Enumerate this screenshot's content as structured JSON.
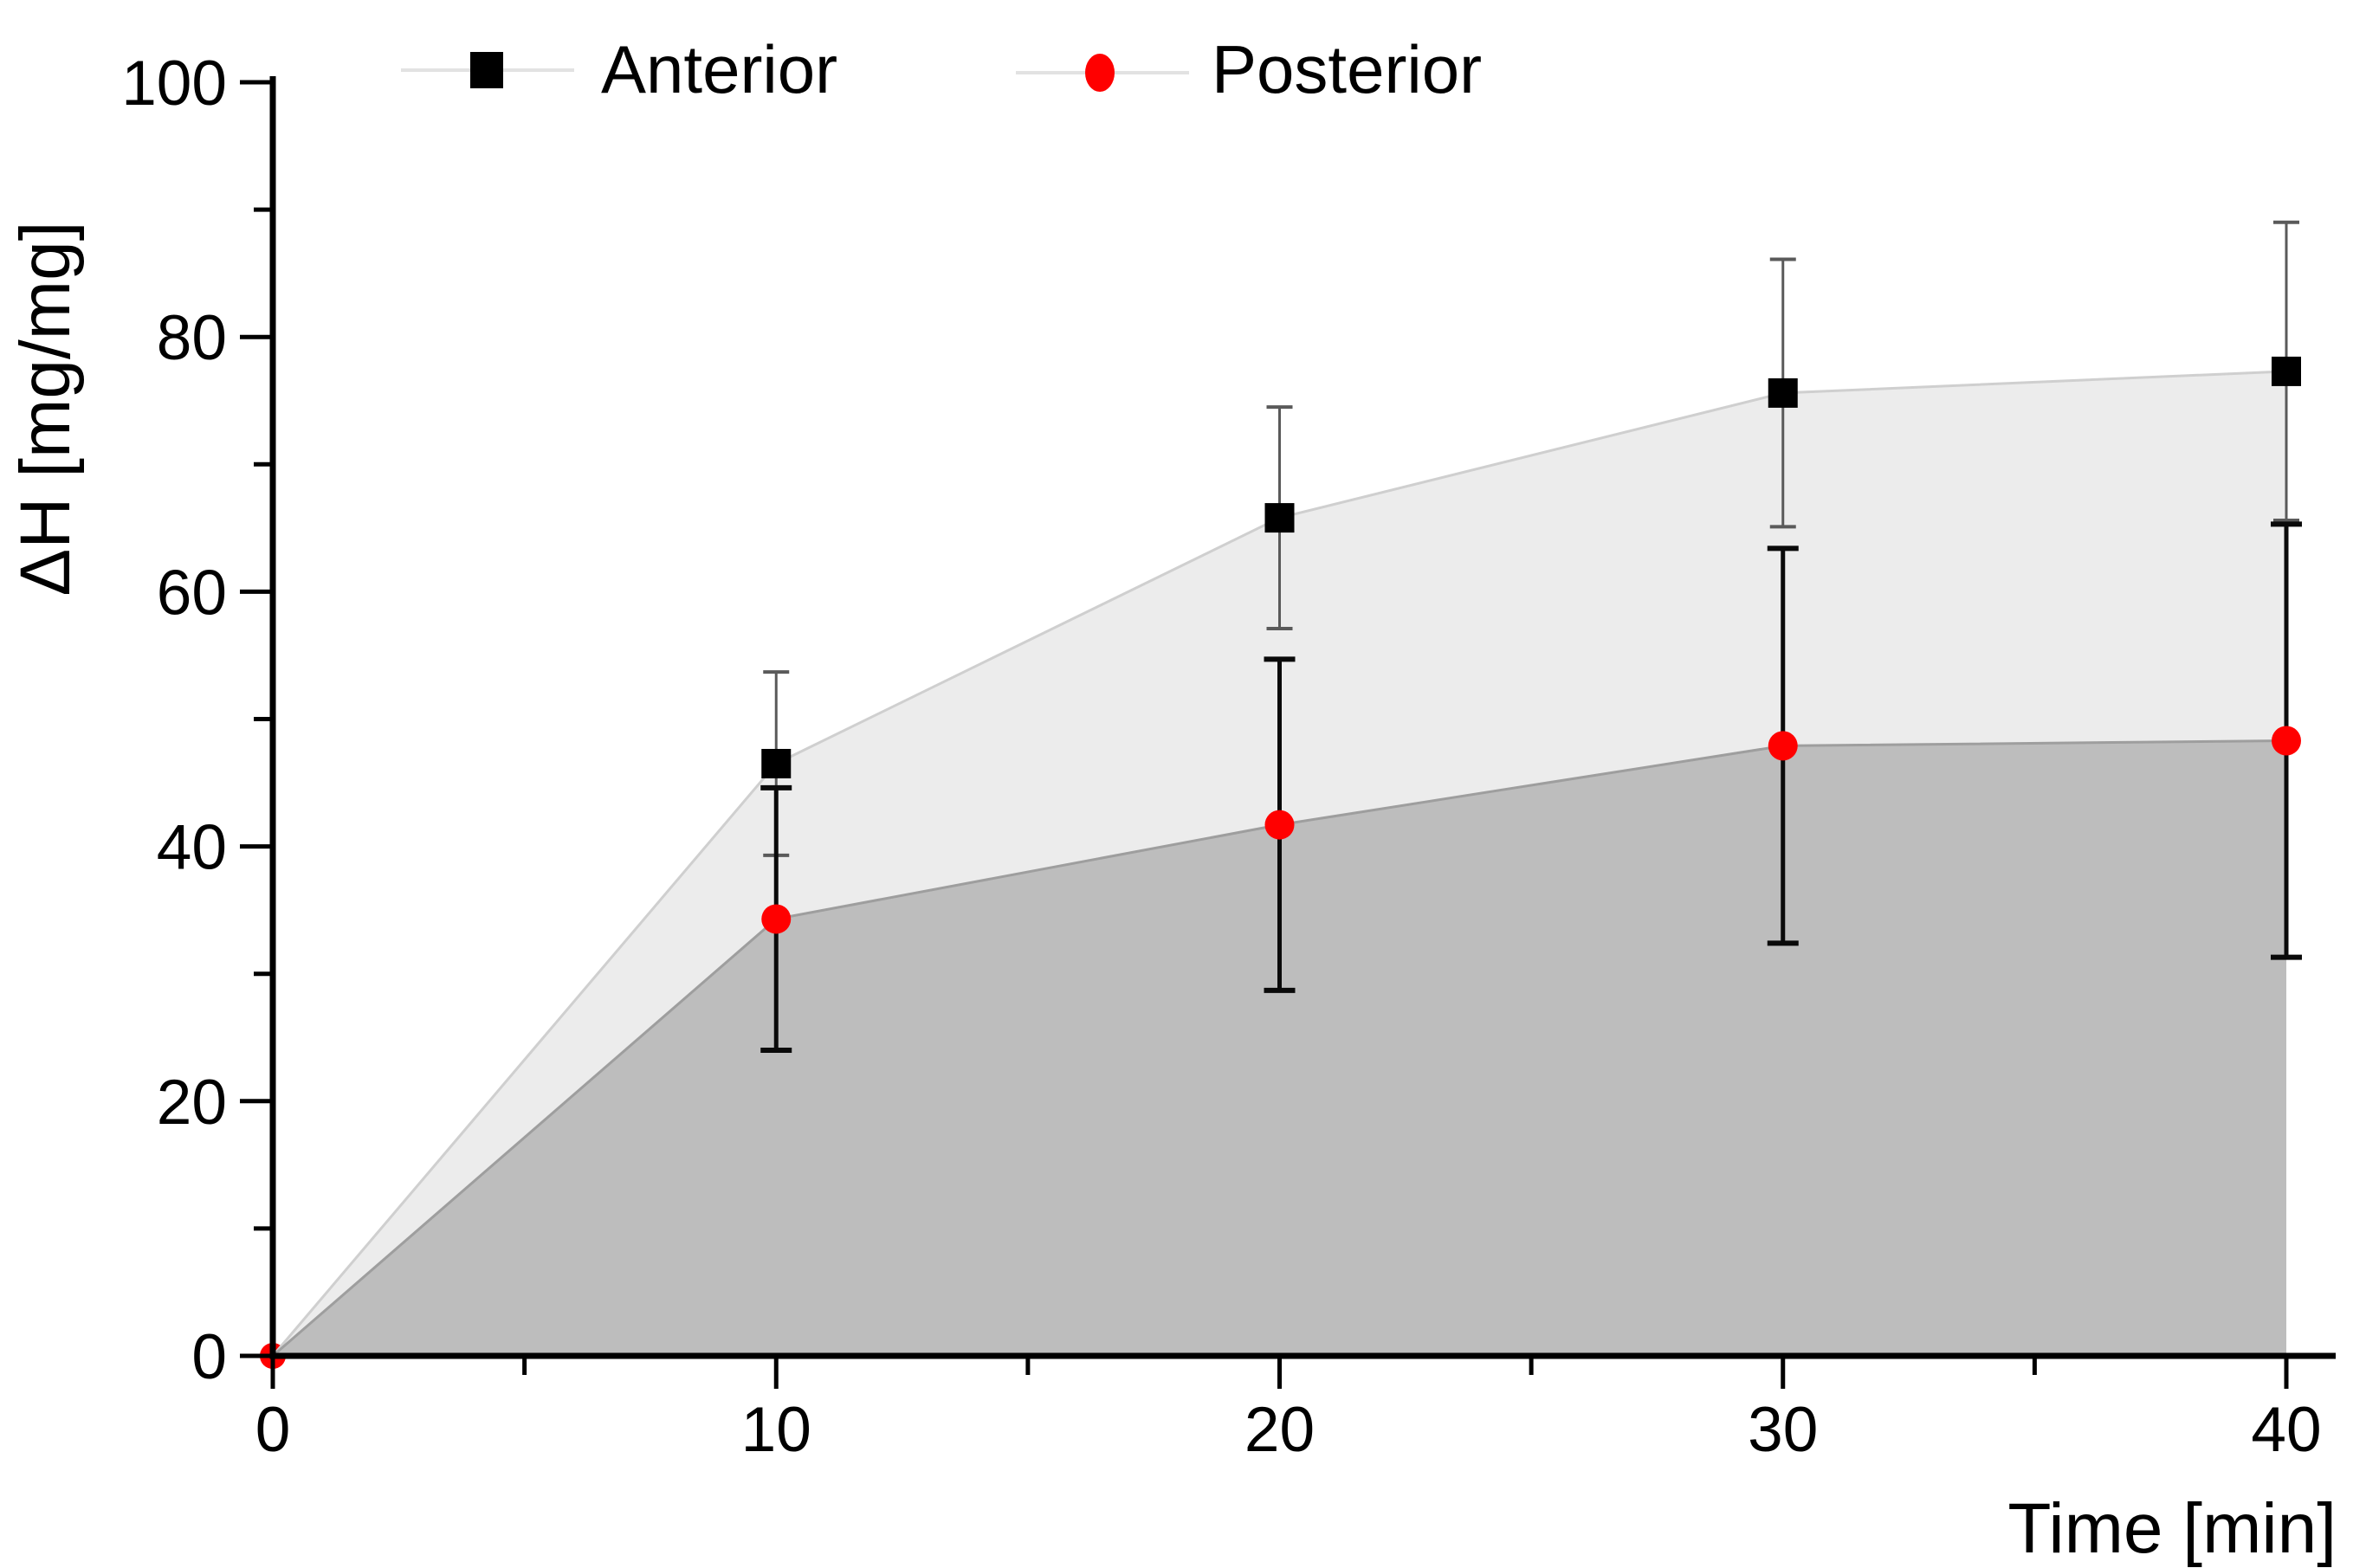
{
  "figure": {
    "background": "#ffffff"
  },
  "legend": {
    "position": "top",
    "items": [
      {
        "label": "Anterior",
        "marker": "black-square-icon",
        "color": "#000000"
      },
      {
        "label": "Posterior",
        "marker": "red-circle-icon",
        "color": "#ff0000"
      }
    ]
  },
  "chart_data": {
    "type": "line",
    "subtype": "scatter-with-error-bars-and-area-fill",
    "title": "",
    "xlabel": "Time [min]",
    "ylabel": "ΔH [mg/mg]",
    "x": [
      0,
      10,
      20,
      30,
      40
    ],
    "series": [
      {
        "name": "Anterior",
        "marker": "square",
        "color": "#000000",
        "line_color": "#cfcfcf",
        "fill_color": "#ececec",
        "error_color": "#5a5a5a",
        "values": [
          0,
          46.5,
          65.8,
          75.6,
          77.3
        ],
        "errors": [
          0,
          7.2,
          8.7,
          10.5,
          11.7
        ]
      },
      {
        "name": "Posterior",
        "marker": "circle",
        "color": "#ff0000",
        "line_color": "#9e9e9e",
        "fill_color": "#bdbdbd",
        "error_color": "#0a0a0a",
        "values": [
          0,
          34.3,
          41.7,
          47.9,
          48.3
        ],
        "errors": [
          0,
          10.3,
          13.0,
          15.5,
          17.0
        ]
      }
    ],
    "xlim": [
      0,
      40
    ],
    "ylim": [
      0,
      100
    ],
    "x_major_ticks": [
      0,
      10,
      20,
      30,
      40
    ],
    "x_minor_ticks": [
      5,
      15,
      25,
      35
    ],
    "y_major_ticks": [
      0,
      20,
      40,
      60,
      80,
      100
    ],
    "y_minor_ticks": [
      10,
      30,
      50,
      70,
      90
    ],
    "grid": false,
    "axis_color": "#000000",
    "legend_position": "top"
  }
}
